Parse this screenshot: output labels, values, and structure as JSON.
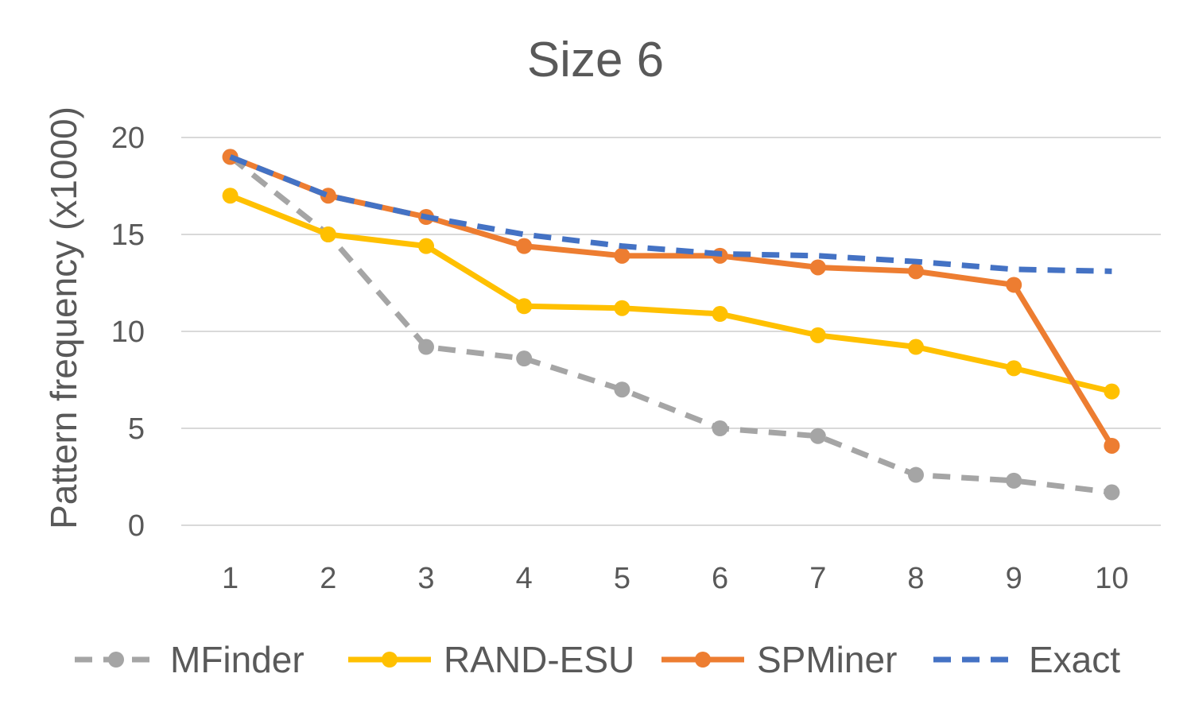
{
  "chart_data": {
    "type": "line",
    "title": "Size 6",
    "xlabel": "",
    "ylabel": "Pattern frequency (x1000)",
    "categories": [
      "1",
      "2",
      "3",
      "4",
      "5",
      "6",
      "7",
      "8",
      "9",
      "10"
    ],
    "ylim": [
      0,
      20
    ],
    "yticks": [
      "0",
      "5",
      "10",
      "15",
      "20"
    ],
    "ytick_values": [
      0,
      5,
      10,
      15,
      20
    ],
    "grid": true,
    "legend_position": "bottom",
    "series": [
      {
        "name": "MFinder",
        "color": "#a5a5a5",
        "dashed": true,
        "markers": true,
        "values": [
          19,
          15,
          9.2,
          8.6,
          7.0,
          5.0,
          4.6,
          2.6,
          2.3,
          1.7
        ]
      },
      {
        "name": "RAND-ESU",
        "color": "#ffc000",
        "dashed": false,
        "markers": true,
        "values": [
          17,
          15,
          14.4,
          11.3,
          11.2,
          10.9,
          9.8,
          9.2,
          8.1,
          6.9
        ]
      },
      {
        "name": "SPMiner",
        "color": "#ed7d31",
        "dashed": false,
        "markers": true,
        "values": [
          19,
          17,
          15.9,
          14.4,
          13.9,
          13.9,
          13.3,
          13.1,
          12.4,
          4.1
        ]
      },
      {
        "name": "Exact",
        "color": "#4472c4",
        "dashed": true,
        "markers": false,
        "values": [
          19,
          17,
          15.9,
          15.0,
          14.4,
          14.0,
          13.9,
          13.6,
          13.2,
          13.1
        ]
      }
    ]
  }
}
